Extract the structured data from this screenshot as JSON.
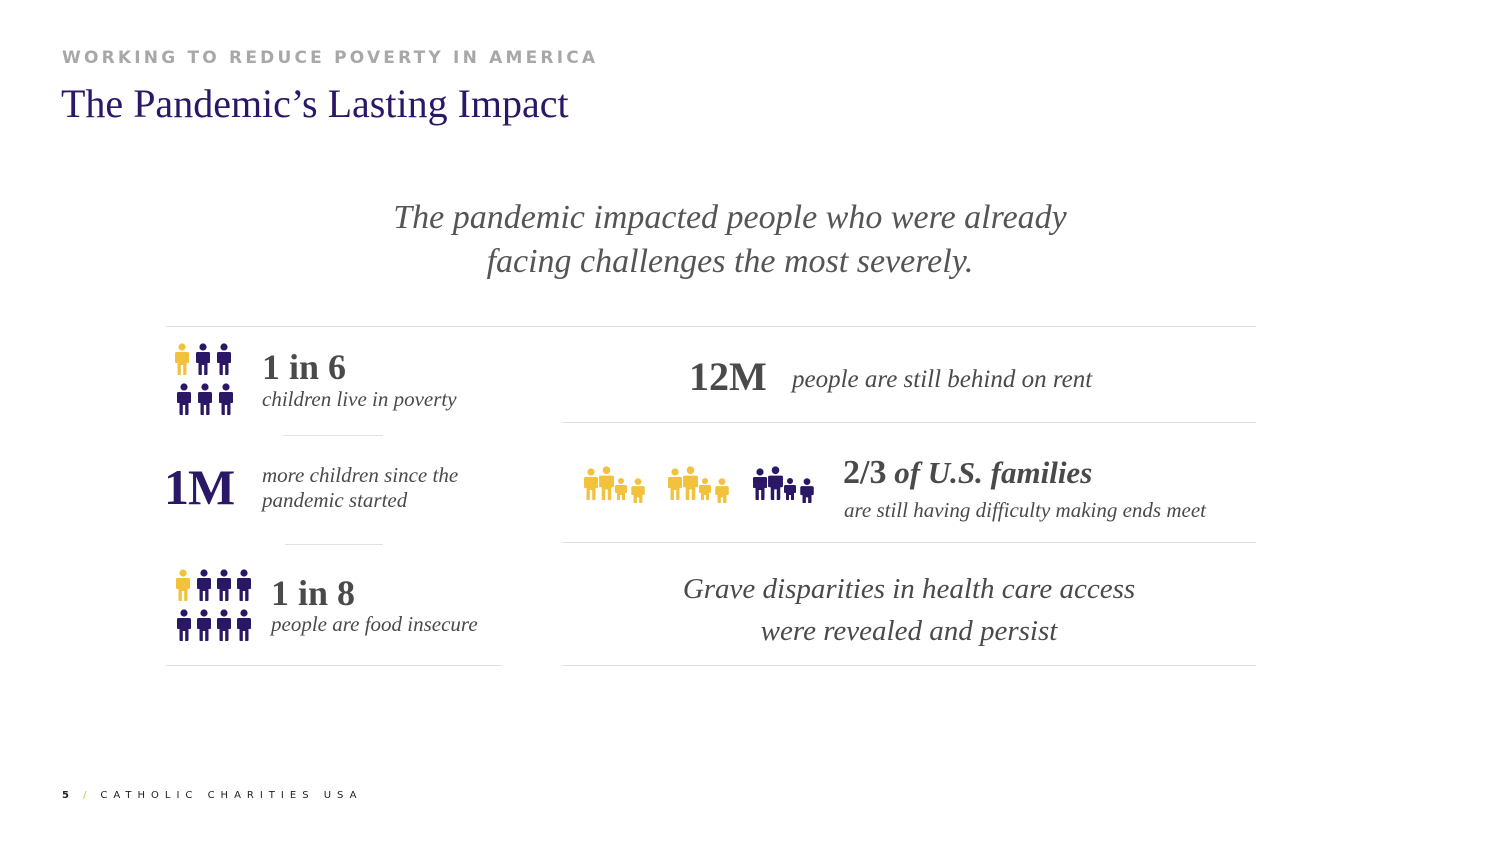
{
  "header": {
    "eyebrow": "WORKING TO REDUCE POVERTY IN AMERICA",
    "title": "The Pandemic’s Lasting Impact"
  },
  "lead": {
    "line1": "The pandemic impacted people who were already",
    "line2": "facing challenges the most severely."
  },
  "stats": {
    "children_poverty": {
      "number": "1 in 6",
      "text": "children live in poverty",
      "highlighted": 1,
      "total": 6
    },
    "more_children": {
      "number": "1M",
      "line1": "more children since the",
      "line2": "pandemic started"
    },
    "food_insecure": {
      "number": "1 in 8",
      "text": "people are food insecure",
      "highlighted": 1,
      "total": 8
    },
    "rent": {
      "number": "12M",
      "text": "people are still behind on rent"
    },
    "families": {
      "number": "2/3",
      "emphasis": " of U.S. families",
      "text": "are still having difficulty making ends meet",
      "highlighted": 2,
      "total": 3
    },
    "health": {
      "line1": "Grave disparities in health care access",
      "line2": "were revealed and persist"
    }
  },
  "colors": {
    "purple": "#2a1766",
    "gold": "#f2c23c",
    "gray_text": "#4a4a4a",
    "divider": "#e2e2e2"
  },
  "footer": {
    "page": "5",
    "slash": "/",
    "org": "CATHOLIC CHARITIES USA"
  }
}
